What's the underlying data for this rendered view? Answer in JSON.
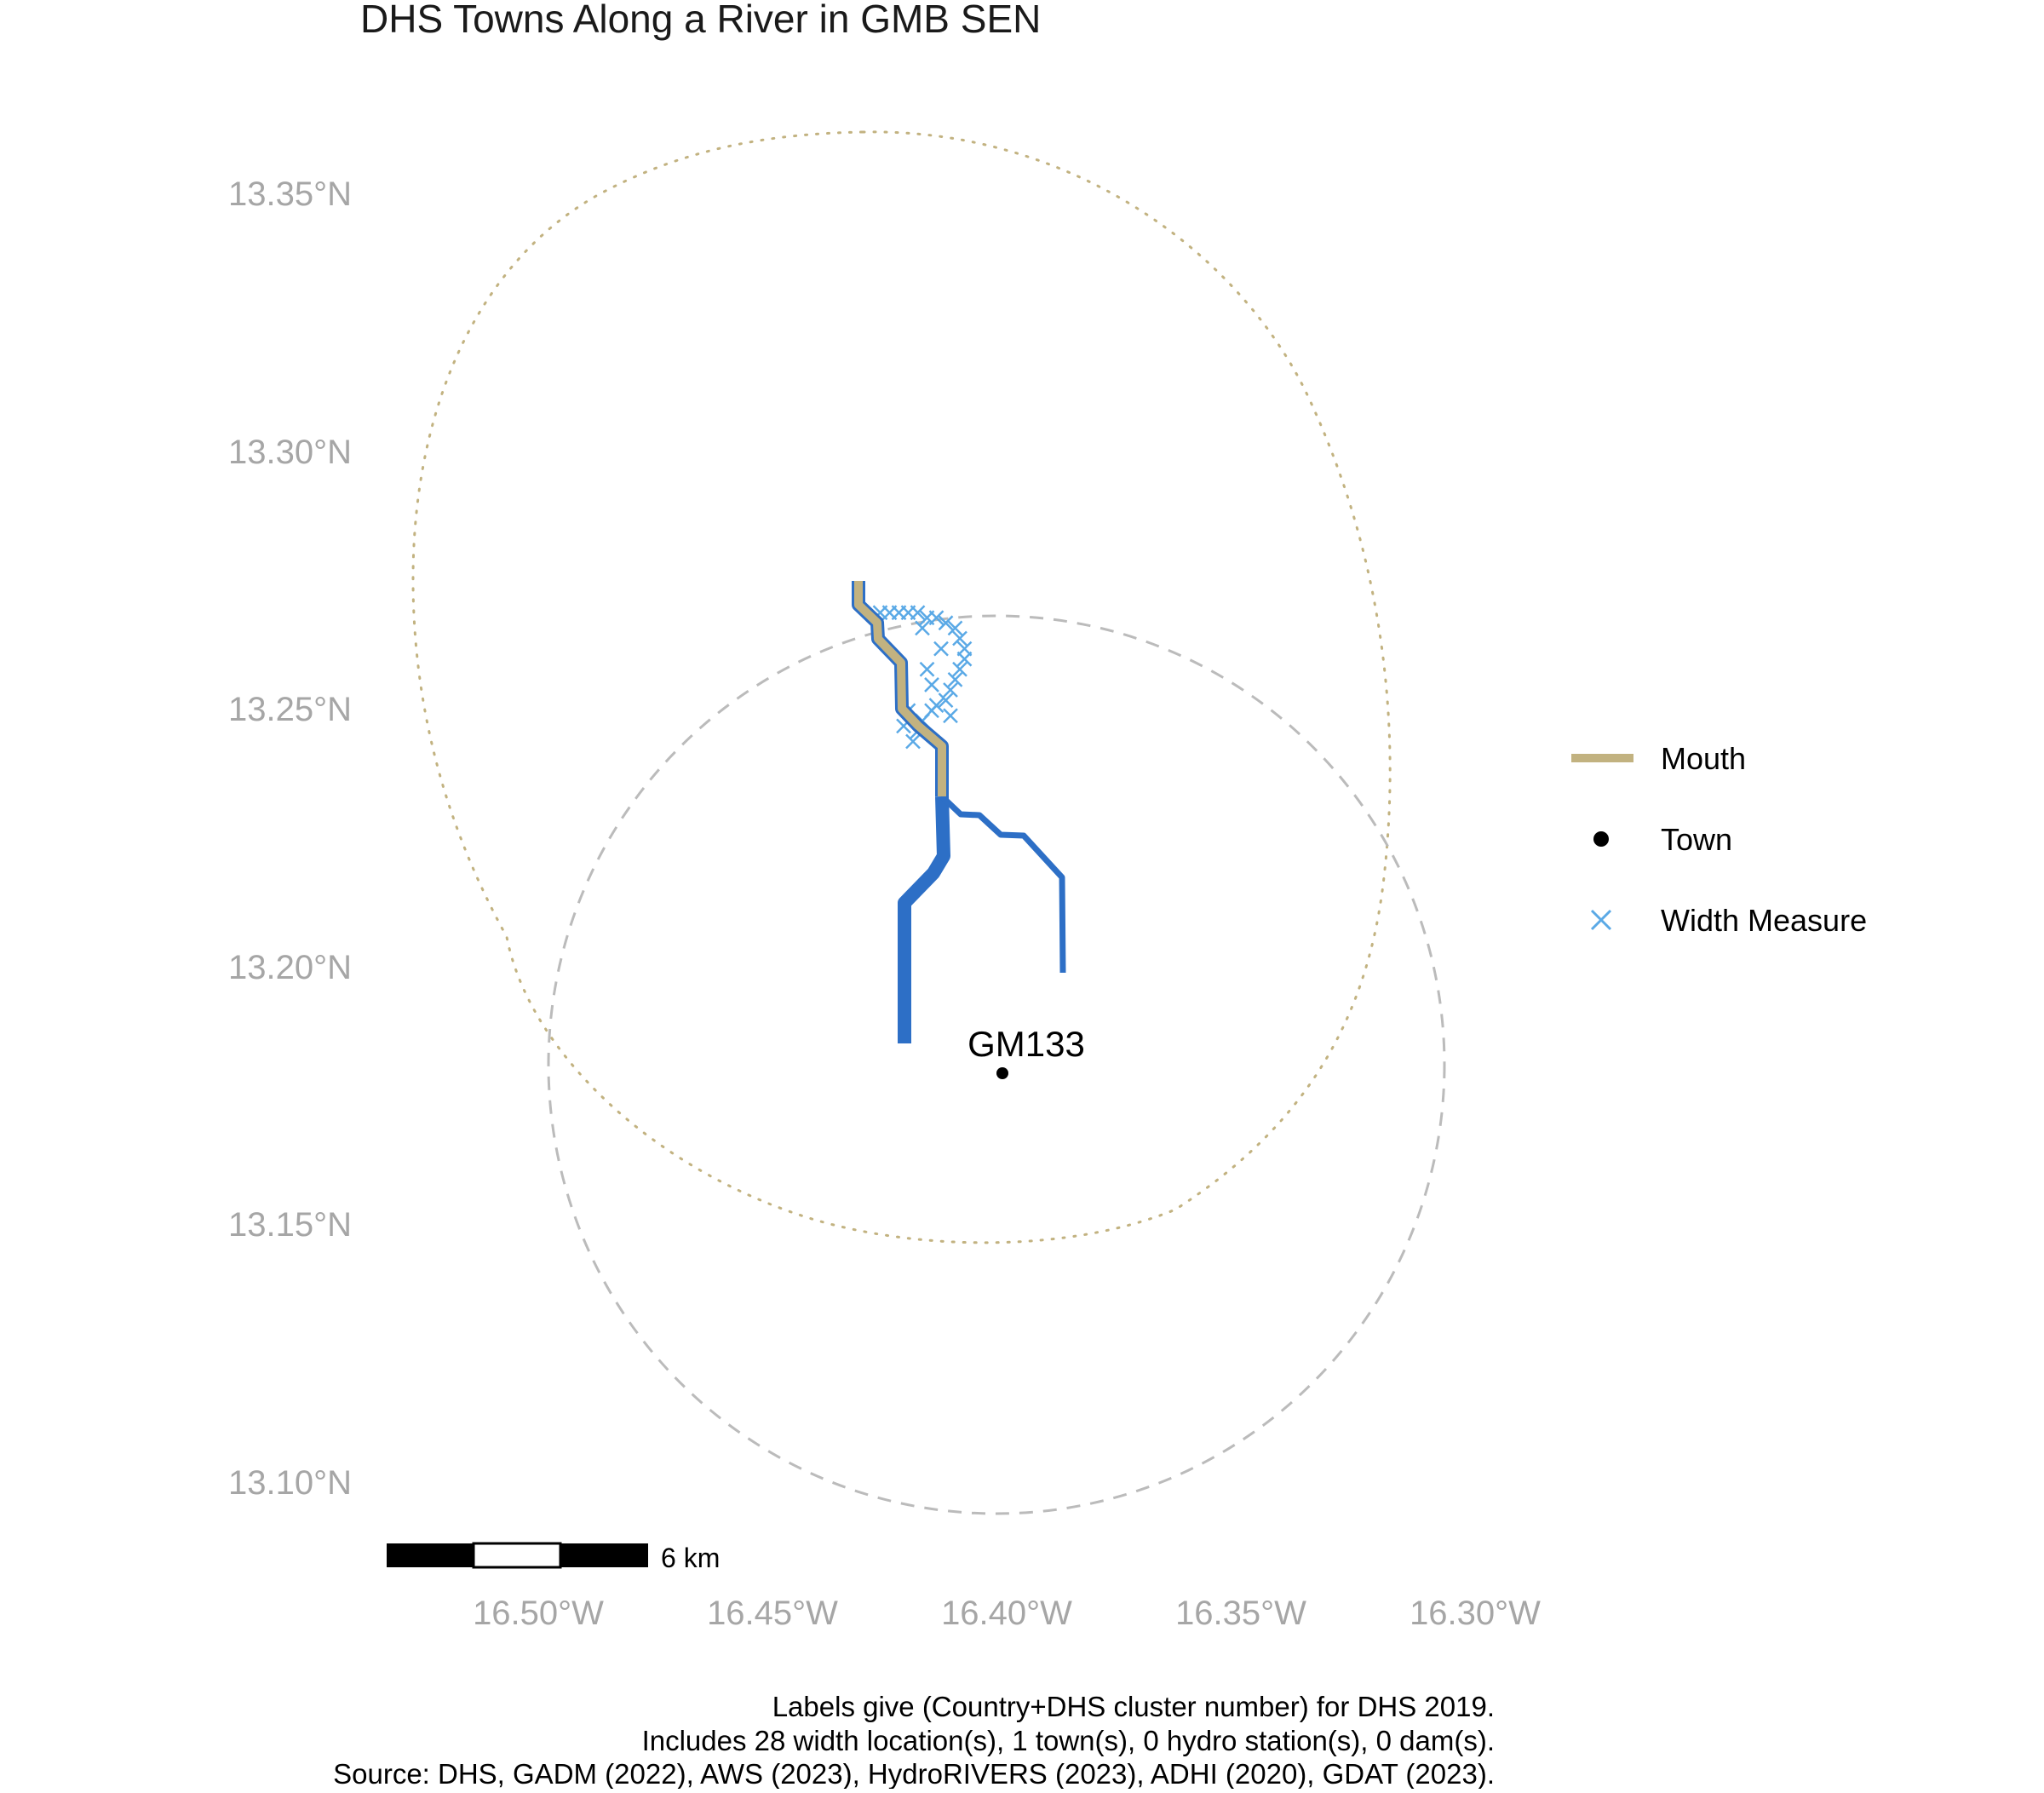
{
  "title": "DHS Towns Along a River in GMB SEN",
  "axes": {
    "lat_ticks": [
      "13.35°N",
      "13.30°N",
      "13.25°N",
      "13.20°N",
      "13.15°N",
      "13.10°N"
    ],
    "lon_ticks": [
      "16.50°W",
      "16.45°W",
      "16.40°W",
      "16.35°W",
      "16.30°W"
    ]
  },
  "legend": {
    "items": [
      {
        "label": "Mouth",
        "symbol": "line",
        "color": "#c2b280"
      },
      {
        "label": "Town",
        "symbol": "point",
        "color": "#000000"
      },
      {
        "label": "Width Measure",
        "symbol": "cross",
        "color": "#5aa9e6"
      }
    ]
  },
  "towns": [
    {
      "label": "GM133",
      "lon": -16.404,
      "lat": 13.181
    }
  ],
  "scale_bar": {
    "label": "6 km"
  },
  "caption": [
    "Labels give (Country+DHS cluster number) for DHS 2019.",
    "Includes 28 width location(s), 1 town(s), 0 hydro station(s), 0 dam(s).",
    "Source: DHS, GADM (2022), AWS (2023), HydroRIVERS (2023), ADHI (2020), GDAT (2023)."
  ],
  "colors": {
    "river": "#2d6fc6",
    "mouth": "#c2b280",
    "width_measure": "#5aa9e6",
    "town_buffer": "#bbbbbb",
    "mouth_buffer": "#c2b280",
    "axis_text": "#a6a6a6",
    "text": "#000000"
  },
  "chart_data": {
    "type": "map",
    "xlim": [
      -16.53,
      -16.29
    ],
    "ylim": [
      13.09,
      13.36
    ],
    "grid": false,
    "legend_position": "right",
    "title": "DHS Towns Along a River in GMB SEN",
    "mouth_path": [
      [
        -16.432,
        13.274
      ],
      [
        -16.432,
        13.267
      ],
      [
        -16.427,
        13.263
      ],
      [
        -16.427,
        13.259
      ],
      [
        -16.422,
        13.255
      ],
      [
        -16.422,
        13.246
      ],
      [
        -16.418,
        13.242
      ],
      [
        -16.415,
        13.24
      ],
      [
        -16.415,
        13.233
      ]
    ],
    "river_main": [
      [
        -16.415,
        13.233
      ],
      [
        -16.415,
        13.222
      ],
      [
        -16.421,
        13.213
      ],
      [
        -16.425,
        13.209
      ],
      [
        -16.425,
        13.198
      ],
      [
        -16.425,
        13.186
      ]
    ],
    "river_branch": [
      [
        -16.415,
        13.233
      ],
      [
        -16.411,
        13.229
      ],
      [
        -16.407,
        13.229
      ],
      [
        -16.403,
        13.225
      ],
      [
        -16.398,
        13.225
      ],
      [
        -16.39,
        13.217
      ],
      [
        -16.39,
        13.199
      ]
    ],
    "width_measures": [
      [
        -16.42,
        13.244
      ],
      [
        -16.419,
        13.246
      ],
      [
        -16.418,
        13.248
      ],
      [
        -16.416,
        13.25
      ],
      [
        -16.415,
        13.251
      ],
      [
        -16.413,
        13.252
      ],
      [
        -16.412,
        13.254
      ],
      [
        -16.411,
        13.256
      ],
      [
        -16.41,
        13.258
      ],
      [
        -16.409,
        13.26
      ],
      [
        -16.409,
        13.262
      ],
      [
        -16.41,
        13.264
      ],
      [
        -16.411,
        13.266
      ],
      [
        -16.413,
        13.267
      ],
      [
        -16.415,
        13.268
      ],
      [
        -16.417,
        13.268
      ],
      [
        -16.419,
        13.269
      ],
      [
        -16.421,
        13.269
      ],
      [
        -16.423,
        13.269
      ],
      [
        -16.425,
        13.269
      ],
      [
        -16.427,
        13.269
      ],
      [
        -16.418,
        13.266
      ],
      [
        -16.414,
        13.262
      ],
      [
        -16.417,
        13.258
      ],
      [
        -16.416,
        13.255
      ],
      [
        -16.421,
        13.25
      ],
      [
        -16.422,
        13.247
      ],
      [
        -16.412,
        13.249
      ]
    ],
    "town_buffer": {
      "center": [
        -16.404,
        13.181
      ],
      "style": "dashed"
    },
    "mouth_buffer": {
      "style": "dotted"
    }
  }
}
